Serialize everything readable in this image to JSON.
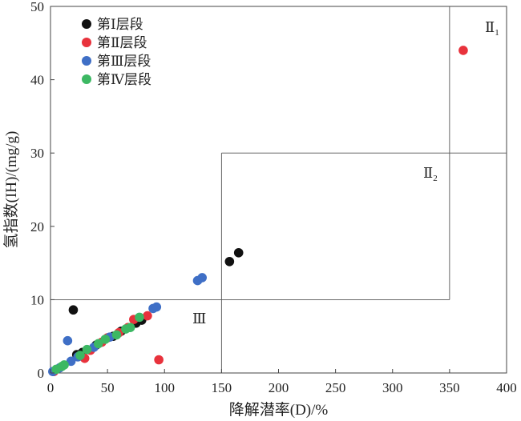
{
  "chart_data": {
    "type": "scatter",
    "title": "",
    "xlabel": "降解潜率(D)/%",
    "ylabel": "氢指数(IH)/(mg/g)",
    "xlim": [
      0,
      400
    ],
    "ylim": [
      0,
      50
    ],
    "xticks": [
      "0",
      "50",
      "100",
      "150",
      "200",
      "250",
      "300",
      "350",
      "400"
    ],
    "yticks": [
      "0",
      "10",
      "20",
      "30",
      "40",
      "50"
    ],
    "grid": false,
    "legend_position": "top-left",
    "series": [
      {
        "name": "第Ⅰ层段",
        "color": "#111111",
        "points": [
          [
            20,
            8.6
          ],
          [
            23,
            2.5
          ],
          [
            28,
            2.8
          ],
          [
            40,
            3.8
          ],
          [
            55,
            5.0
          ],
          [
            62,
            5.7
          ],
          [
            75,
            6.8
          ],
          [
            80,
            7.2
          ],
          [
            157,
            15.2
          ],
          [
            165,
            16.4
          ]
        ]
      },
      {
        "name": "第Ⅱ层段",
        "color": "#e8323c",
        "points": [
          [
            3,
            0.2
          ],
          [
            30,
            2.0
          ],
          [
            35,
            3.1
          ],
          [
            45,
            4.2
          ],
          [
            50,
            4.8
          ],
          [
            60,
            5.5
          ],
          [
            68,
            6.2
          ],
          [
            73,
            7.3
          ],
          [
            85,
            7.8
          ],
          [
            95,
            1.8
          ],
          [
            362,
            44.0
          ]
        ]
      },
      {
        "name": "第Ⅲ层段",
        "color": "#3f6fc6",
        "points": [
          [
            2,
            0.2
          ],
          [
            8,
            0.7
          ],
          [
            15,
            4.4
          ],
          [
            18,
            1.6
          ],
          [
            24,
            2.2
          ],
          [
            38,
            3.5
          ],
          [
            52,
            4.9
          ],
          [
            90,
            8.8
          ],
          [
            93,
            9.0
          ],
          [
            129,
            12.6
          ],
          [
            133,
            13.0
          ]
        ]
      },
      {
        "name": "第Ⅳ层段",
        "color": "#3cb863",
        "points": [
          [
            5,
            0.5
          ],
          [
            10,
            0.9
          ],
          [
            12,
            1.1
          ],
          [
            26,
            2.4
          ],
          [
            32,
            3.2
          ],
          [
            42,
            4.0
          ],
          [
            48,
            4.6
          ],
          [
            58,
            5.2
          ],
          [
            66,
            6.0
          ],
          [
            70,
            6.2
          ],
          [
            78,
            7.6
          ]
        ]
      }
    ],
    "regions": [
      {
        "label": "Ⅱ",
        "sub": "1",
        "bounds": {
          "x": [
            350,
            400
          ],
          "y": [
            30,
            50
          ]
        }
      },
      {
        "label": "Ⅱ",
        "sub": "2",
        "bounds": {
          "x": [
            150,
            400
          ],
          "y": [
            10,
            30
          ]
        }
      },
      {
        "label": "Ⅲ",
        "sub": "",
        "bounds": {
          "x": [
            0,
            350
          ],
          "y": [
            0,
            10
          ]
        }
      }
    ]
  }
}
